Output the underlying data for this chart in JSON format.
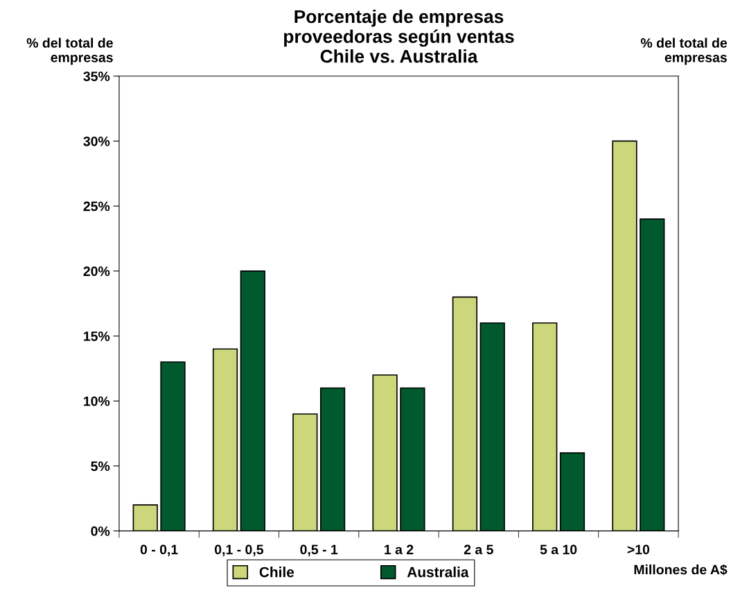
{
  "chart_data": {
    "type": "bar",
    "title": "Porcentaje de empresas\nproveedoras según ventas\nChile vs. Australia",
    "ylabel": "% del total de\nempresas",
    "xlabel": "Millones de A$",
    "annotations": [
      "% del total de\nempresas"
    ],
    "categories": [
      "0 - 0,1",
      "0,1 - 0,5",
      "0,5 - 1",
      "1 a 2",
      "2 a 5",
      "5 a 10",
      ">10"
    ],
    "series": [
      {
        "name": "Chile",
        "color": "#ccd67a",
        "values": [
          2,
          14,
          9,
          12,
          18,
          16,
          30
        ]
      },
      {
        "name": "Australia",
        "color": "#005a2e",
        "values": [
          13,
          20,
          11,
          11,
          16,
          6,
          24
        ]
      }
    ],
    "ylim": [
      0,
      35
    ],
    "yticks": [
      {
        "value": 0,
        "label": "0%"
      },
      {
        "value": 5,
        "label": "5%"
      },
      {
        "value": 10,
        "label": "10%"
      },
      {
        "value": 15,
        "label": "15%"
      },
      {
        "value": 20,
        "label": "20%"
      },
      {
        "value": 25,
        "label": "25%"
      },
      {
        "value": 30,
        "label": "30%"
      },
      {
        "value": 35,
        "label": "35%"
      }
    ],
    "grid": false,
    "legend": "bottom"
  }
}
